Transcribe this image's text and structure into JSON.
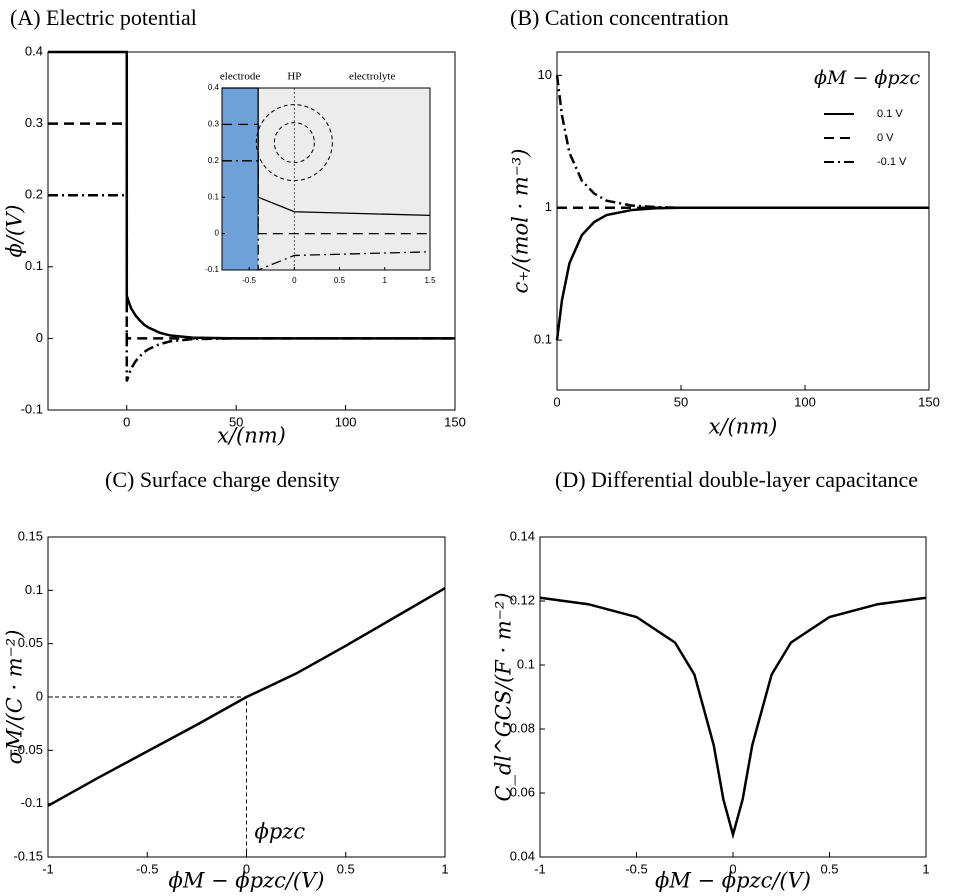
{
  "chart_data": [
    {
      "type": "line",
      "title": "(A)  Electric potential",
      "xlabel": "x/(nm)",
      "ylabel": "ϕ/(V)",
      "xlim": [
        -36,
        150
      ],
      "xticks": [
        0,
        50,
        100,
        150
      ],
      "ylim": [
        -0.1,
        0.4
      ],
      "yticks": [
        -0.1,
        0,
        0.1,
        0.2,
        0.3,
        0.4
      ],
      "series": [
        {
          "dash": "solid",
          "color": "#000000",
          "x": [
            -36,
            0,
            0,
            1,
            2,
            4,
            6,
            8,
            10,
            15,
            20,
            30,
            50,
            100,
            150
          ],
          "values": [
            0.4,
            0.4,
            0.06,
            0.05,
            0.042,
            0.032,
            0.025,
            0.019,
            0.015,
            0.008,
            0.004,
            0.001,
            0,
            0,
            0
          ]
        },
        {
          "dash": "dashed",
          "color": "#000000",
          "x": [
            -36,
            0,
            0,
            150
          ],
          "values": [
            0.3,
            0.3,
            0,
            0
          ]
        },
        {
          "dash": "dashdot",
          "color": "#000000",
          "x": [
            -36,
            0,
            0,
            1,
            2,
            4,
            6,
            8,
            10,
            15,
            20,
            30,
            50,
            100,
            150
          ],
          "values": [
            0.2,
            0.2,
            -0.06,
            -0.05,
            -0.042,
            -0.032,
            -0.025,
            -0.019,
            -0.015,
            -0.008,
            -0.004,
            -0.001,
            0,
            0,
            0
          ]
        }
      ],
      "inset": {
        "type": "line",
        "xlim": [
          -0.8,
          1.5
        ],
        "xticks": [
          -0.5,
          0,
          0.5,
          1,
          1.5
        ],
        "ylim": [
          -0.1,
          0.4
        ],
        "yticks": [
          -0.1,
          0,
          0.1,
          0.2,
          0.3,
          0.4
        ],
        "labels": [
          "electrode",
          "HP",
          "electrolyte"
        ],
        "electrode_color": "#6fa1d9",
        "background": "#ececec",
        "series": [
          {
            "dash": "solid",
            "color": "#000000",
            "x": [
              -0.8,
              -0.4,
              -0.4,
              0,
              1.5
            ],
            "values": [
              0.4,
              0.4,
              0.1,
              0.06,
              0.05
            ]
          },
          {
            "dash": "dashed",
            "color": "#000000",
            "x": [
              -0.8,
              -0.4,
              -0.4,
              0,
              1.5
            ],
            "values": [
              0.3,
              0.3,
              0,
              0,
              0
            ]
          },
          {
            "dash": "dashdot",
            "color": "#000000",
            "x": [
              -0.8,
              -0.4,
              -0.4,
              0,
              1.5
            ],
            "values": [
              0.2,
              0.2,
              -0.1,
              -0.06,
              -0.05
            ]
          }
        ]
      }
    },
    {
      "type": "line",
      "title": "(B)  Cation concentration",
      "xlabel": "x/(nm)",
      "ylabel": "c₊/(mol · m⁻³)",
      "log_y": true,
      "xlim": [
        0,
        150
      ],
      "xticks": [
        0,
        50,
        100,
        150
      ],
      "ylim": [
        0.042,
        15
      ],
      "yticks": [
        0.1,
        1,
        10
      ],
      "legend_title": "ϕM − ϕpzc",
      "legend": "upper right",
      "series": [
        {
          "name": "0.1 V",
          "dash": "solid",
          "color": "#000000",
          "x": [
            0,
            2,
            5,
            10,
            15,
            20,
            30,
            40,
            50,
            100,
            150
          ],
          "values": [
            0.1,
            0.2,
            0.38,
            0.62,
            0.78,
            0.88,
            0.96,
            0.99,
            1,
            1,
            1
          ]
        },
        {
          "name": "0 V",
          "dash": "dashed",
          "color": "#000000",
          "x": [
            0,
            150
          ],
          "values": [
            1,
            1
          ]
        },
        {
          "name": "-0.1 V",
          "dash": "dashdot",
          "color": "#000000",
          "x": [
            0,
            2,
            5,
            10,
            15,
            20,
            30,
            40,
            50,
            100,
            150
          ],
          "values": [
            10,
            5,
            2.6,
            1.6,
            1.28,
            1.13,
            1.04,
            1.01,
            1,
            1,
            1
          ]
        }
      ]
    },
    {
      "type": "line",
      "title": "(C)  Surface charge density",
      "xlabel": "ϕM − ϕpzc/(V)",
      "ylabel": "σM/(C · m⁻²)",
      "annotation": "ϕpzc",
      "xlim": [
        -1,
        1
      ],
      "xticks": [
        -1,
        -0.5,
        0,
        0.5,
        1
      ],
      "ylim": [
        -0.15,
        0.15
      ],
      "yticks": [
        -0.15,
        -0.1,
        -0.05,
        0,
        0.05,
        0.1,
        0.15
      ],
      "series": [
        {
          "dash": "solid",
          "color": "#000000",
          "x": [
            -1,
            -0.75,
            -0.5,
            -0.25,
            0,
            0.25,
            0.5,
            0.75,
            1
          ],
          "values": [
            -0.102,
            -0.076,
            -0.051,
            -0.026,
            0,
            0.022,
            0.048,
            0.075,
            0.102
          ]
        }
      ]
    },
    {
      "type": "line",
      "title": "(D)  Differential double-layer capacitance",
      "xlabel": "ϕM − ϕpzc/(V)",
      "ylabel": "C_dl^GCS/(F · m⁻²)",
      "xlim": [
        -1,
        1
      ],
      "xticks": [
        -1,
        -0.5,
        0,
        0.5,
        1
      ],
      "ylim": [
        0.04,
        0.14
      ],
      "yticks": [
        0.04,
        0.06,
        0.08,
        0.1,
        0.12,
        0.14
      ],
      "series": [
        {
          "dash": "solid",
          "color": "#000000",
          "x": [
            -1,
            -0.75,
            -0.5,
            -0.3,
            -0.2,
            -0.1,
            -0.05,
            0,
            0.05,
            0.1,
            0.2,
            0.3,
            0.5,
            0.75,
            1
          ],
          "values": [
            0.121,
            0.119,
            0.115,
            0.107,
            0.097,
            0.075,
            0.058,
            0.047,
            0.058,
            0.075,
            0.097,
            0.107,
            0.115,
            0.119,
            0.121
          ]
        }
      ]
    }
  ]
}
